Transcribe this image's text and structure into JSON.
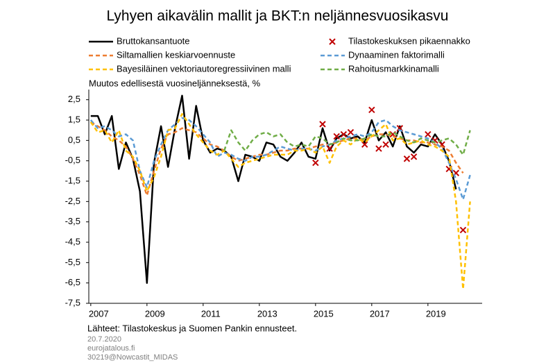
{
  "chart_data": {
    "type": "line",
    "title": "Lyhyen aikavälin mallit ja BKT:n neljännesvuosikasvu",
    "subtitle": "Muutos edellisestä vuosineljänneksestä, %",
    "x": [
      2007,
      2007.25,
      2007.5,
      2007.75,
      2008,
      2008.25,
      2008.5,
      2008.75,
      2009,
      2009.25,
      2009.5,
      2009.75,
      2010,
      2010.25,
      2010.5,
      2010.75,
      2011,
      2011.25,
      2011.5,
      2011.75,
      2012,
      2012.25,
      2012.5,
      2012.75,
      2013,
      2013.25,
      2013.5,
      2013.75,
      2014,
      2014.25,
      2014.5,
      2014.75,
      2015,
      2015.25,
      2015.5,
      2015.75,
      2016,
      2016.25,
      2016.5,
      2016.75,
      2017,
      2017.25,
      2017.5,
      2017.75,
      2018,
      2018.25,
      2018.5,
      2018.75,
      2019,
      2019.25,
      2019.5,
      2019.75,
      2020,
      2020.25,
      2020.5
    ],
    "series": [
      {
        "name": "Bruttokansantuote",
        "color": "#000000",
        "style": "solid",
        "values": [
          1.7,
          1.7,
          0.8,
          1.7,
          -0.9,
          0.4,
          -0.4,
          -2.0,
          -6.5,
          -0.6,
          1.2,
          -0.8,
          1.1,
          2.7,
          -0.4,
          2.2,
          0.5,
          -0.1,
          0.1,
          0.0,
          -0.3,
          -1.5,
          -0.2,
          -0.3,
          -0.5,
          0.4,
          0.3,
          -0.3,
          -0.5,
          -0.1,
          0.4,
          -0.3,
          -0.4,
          1.1,
          0.0,
          0.6,
          0.8,
          0.6,
          0.7,
          0.4,
          1.5,
          0.5,
          0.9,
          0.2,
          1.2,
          0.2,
          -0.1,
          0.3,
          0.2,
          0.8,
          0.3,
          -0.5,
          -1.9,
          null,
          null
        ]
      },
      {
        "name": "Tilastokeskuksen pikaennakko",
        "color": "#c00000",
        "style": "marker",
        "values": [
          null,
          null,
          null,
          null,
          null,
          null,
          null,
          null,
          null,
          null,
          null,
          null,
          null,
          null,
          null,
          null,
          null,
          null,
          null,
          null,
          null,
          null,
          null,
          null,
          null,
          null,
          null,
          null,
          null,
          null,
          null,
          null,
          -0.6,
          1.3,
          0.1,
          0.7,
          0.8,
          0.9,
          null,
          0.3,
          2.0,
          0.1,
          0.3,
          0.8,
          1.1,
          -0.4,
          -0.3,
          null,
          0.8,
          0.5,
          0.3,
          -0.9,
          -1.1,
          -3.9,
          null
        ]
      },
      {
        "name": "Siltamallien keskiarvoennuste",
        "color": "#ed7d31",
        "style": "dash",
        "values": [
          1.4,
          1.2,
          1.0,
          0.7,
          0.5,
          0.2,
          -0.4,
          -1.2,
          -2.2,
          -1.0,
          0.1,
          0.8,
          0.9,
          1.1,
          1.0,
          0.9,
          0.6,
          0.3,
          0.2,
          0.0,
          -0.3,
          -0.5,
          -0.4,
          -0.3,
          -0.2,
          -0.2,
          -0.1,
          0.0,
          0.0,
          0.1,
          0.1,
          0.1,
          0.2,
          0.3,
          0.3,
          0.4,
          0.5,
          0.6,
          0.6,
          0.5,
          0.7,
          0.8,
          0.8,
          0.7,
          0.6,
          0.5,
          0.5,
          0.4,
          0.4,
          0.3,
          0.2,
          0.0,
          -0.6,
          -1.1,
          null
        ]
      },
      {
        "name": "Dynaaminen faktorimalli",
        "color": "#5b9bd5",
        "style": "dash",
        "values": [
          1.5,
          1.1,
          1.2,
          1.0,
          0.7,
          0.8,
          0.5,
          -1.0,
          -1.8,
          -0.5,
          0.3,
          1.0,
          1.3,
          1.6,
          1.5,
          1.2,
          0.8,
          0.4,
          -0.3,
          -0.1,
          -0.2,
          -0.4,
          -0.5,
          -0.3,
          -0.3,
          -0.2,
          0.0,
          0.2,
          0.1,
          0.0,
          0.1,
          0.1,
          0.0,
          0.2,
          0.3,
          0.5,
          0.6,
          0.7,
          0.8,
          0.7,
          0.9,
          1.4,
          1.5,
          1.2,
          1.0,
          0.9,
          0.8,
          0.7,
          0.6,
          0.4,
          0.1,
          -0.6,
          -1.4,
          -2.4,
          -1.2
        ]
      },
      {
        "name": "Bayesiläinen vektoriautoregressiivinen malli",
        "color": "#ffc000",
        "style": "dash",
        "values": [
          1.4,
          0.9,
          1.0,
          0.4,
          1.0,
          0.0,
          -0.3,
          -1.0,
          -2.0,
          -1.3,
          -0.3,
          1.0,
          1.1,
          1.8,
          1.3,
          0.8,
          0.4,
          0.0,
          -0.2,
          0.0,
          -0.4,
          -0.8,
          -0.6,
          -0.5,
          -0.4,
          -0.3,
          -0.2,
          -0.2,
          -0.2,
          0.0,
          0.0,
          0.1,
          -0.1,
          0.2,
          -0.6,
          0.2,
          0.5,
          0.3,
          0.6,
          0.4,
          0.7,
          1.0,
          1.3,
          0.5,
          0.6,
          0.3,
          0.4,
          0.5,
          0.3,
          0.2,
          0.0,
          -0.3,
          -2.5,
          -6.8,
          -2.5
        ]
      },
      {
        "name": "Rahoitusmarkkinamalli",
        "color": "#70ad47",
        "style": "dash",
        "values": [
          null,
          null,
          null,
          null,
          null,
          null,
          null,
          null,
          null,
          null,
          null,
          null,
          null,
          null,
          null,
          null,
          null,
          null,
          null,
          0.0,
          1.0,
          0.4,
          0.0,
          0.5,
          0.8,
          0.9,
          0.7,
          0.8,
          0.4,
          0.2,
          0.3,
          0.2,
          0.7,
          0.6,
          0.3,
          0.4,
          0.6,
          0.5,
          0.5,
          0.6,
          0.8,
          0.7,
          0.7,
          0.9,
          0.7,
          0.5,
          0.4,
          0.6,
          0.5,
          0.4,
          0.5,
          0.6,
          0.3,
          -0.2,
          1.0
        ]
      }
    ],
    "xlim": [
      2006.93,
      2020.93
    ],
    "xticks": [
      2007,
      2009,
      2011,
      2013,
      2015,
      2017,
      2019
    ],
    "ylim": [
      -7.5,
      3.0
    ],
    "yticks": [
      {
        "value": 2.5,
        "label": "2,5"
      },
      {
        "value": 1.5,
        "label": "1,5"
      },
      {
        "value": 0.5,
        "label": "0,5"
      },
      {
        "value": -0.5,
        "label": "-0,5"
      },
      {
        "value": -1.5,
        "label": "-1,5"
      },
      {
        "value": -2.5,
        "label": "-2,5"
      },
      {
        "value": -3.5,
        "label": "-3,5"
      },
      {
        "value": -4.5,
        "label": "-4,5"
      },
      {
        "value": -5.5,
        "label": "-5,5"
      },
      {
        "value": -6.5,
        "label": "-6,5"
      },
      {
        "value": -7.5,
        "label": "-7,5"
      }
    ],
    "grid": false,
    "notes": [
      "Lähteet:  Tilastokeskus ja Suomen Pankin ennusteet.",
      "20.7.2020",
      "eurojatalous.fi",
      "30219@Nowcastit_MIDAS"
    ]
  }
}
